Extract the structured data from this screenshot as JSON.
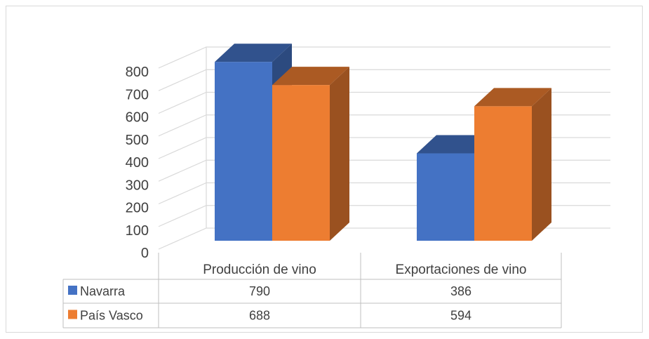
{
  "chart_data": {
    "type": "bar",
    "title": "",
    "xlabel": "",
    "ylabel": "",
    "categories": [
      "Producción de vino",
      "Exportaciones de vino"
    ],
    "series": [
      {
        "name": "Navarra",
        "values": [
          790,
          386
        ],
        "color": "#4472C4"
      },
      {
        "name": "País Vasco",
        "values": [
          688,
          594
        ],
        "color": "#ED7D31"
      }
    ],
    "ylim": [
      0,
      800
    ],
    "yticks": [
      "0",
      "100",
      "200",
      "300",
      "400",
      "500",
      "600",
      "700",
      "800"
    ],
    "grid": true,
    "three_d": true,
    "legend": "data-table",
    "data_table": [
      {
        "series": "Navarra",
        "cells": [
          "790",
          "386"
        ]
      },
      {
        "series": "País Vasco",
        "cells": [
          "688",
          "594"
        ]
      }
    ]
  }
}
